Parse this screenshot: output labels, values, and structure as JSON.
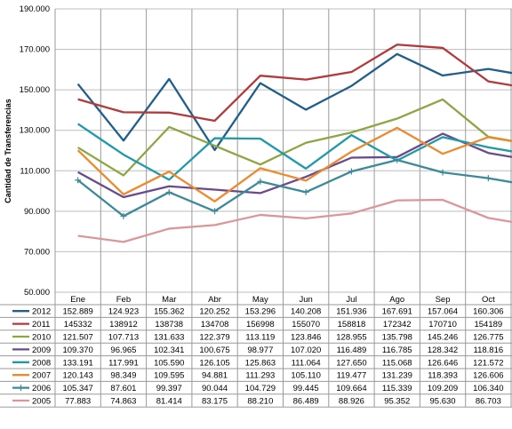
{
  "chart_data": {
    "type": "line",
    "ylabel": "Cantidad de Transferencias",
    "categories": [
      "Ene",
      "Feb",
      "Mar",
      "Abr",
      "May",
      "Jun",
      "Jul",
      "Ago",
      "Sep",
      "Oct"
    ],
    "ylim": [
      50000,
      190000
    ],
    "y_ticks": [
      "50.000",
      "70.000",
      "90.000",
      "110.000",
      "130.000",
      "150.000",
      "170.000",
      "190.000"
    ],
    "grid": true,
    "legend": "data table below plot",
    "series": [
      {
        "name": "2012",
        "color": "#1f5f8b",
        "marker": "",
        "values": [
          152889,
          124923,
          155362,
          120252,
          153296,
          140208,
          151936,
          167691,
          157064,
          160306
        ],
        "labels": [
          "152.889",
          "124.923",
          "155.362",
          "120.252",
          "153.296",
          "140.208",
          "151.936",
          "167.691",
          "157.064",
          "160.306"
        ]
      },
      {
        "name": "2011",
        "color": "#b3393a",
        "marker": "",
        "values": [
          145332,
          138912,
          138738,
          134708,
          156998,
          155070,
          158818,
          172342,
          170710,
          154189
        ],
        "labels": [
          "145332",
          "138912",
          "138738",
          "134708",
          "156998",
          "155070",
          "158818",
          "172342",
          "170710",
          "154189"
        ]
      },
      {
        "name": "2010",
        "color": "#8da641",
        "marker": "",
        "values": [
          121507,
          107713,
          131633,
          122379,
          113119,
          123846,
          128955,
          135798,
          145246,
          126775
        ],
        "labels": [
          "121.507",
          "107.713",
          "131.633",
          "122.379",
          "113.119",
          "123.846",
          "128.955",
          "135.798",
          "145.246",
          "126.775"
        ]
      },
      {
        "name": "2009",
        "color": "#6a4a8c",
        "marker": "",
        "values": [
          109370,
          96965,
          102341,
          100675,
          98977,
          107020,
          116489,
          116785,
          128342,
          118816
        ],
        "labels": [
          "109.370",
          "96.965",
          "102.341",
          "100.675",
          "98.977",
          "107.020",
          "116.489",
          "116.785",
          "128.342",
          "118.816"
        ]
      },
      {
        "name": "2008",
        "color": "#1f9aaa",
        "marker": "",
        "values": [
          133191,
          117991,
          105590,
          126105,
          125863,
          111064,
          127650,
          115068,
          126646,
          121572
        ],
        "labels": [
          "133.191",
          "117.991",
          "105.590",
          "126.105",
          "125.863",
          "111.064",
          "127.650",
          "115.068",
          "126.646",
          "121.572"
        ]
      },
      {
        "name": "2007",
        "color": "#ee8a2e",
        "marker": "",
        "values": [
          120143,
          98349,
          109595,
          94881,
          111293,
          105110,
          119477,
          131239,
          118393,
          126606
        ],
        "labels": [
          "120.143",
          "98.349",
          "109.595",
          "94.881",
          "111.293",
          "105.110",
          "119.477",
          "131.239",
          "118.393",
          "126.606"
        ]
      },
      {
        "name": "2006",
        "color": "#3b8a99",
        "marker": "+",
        "values": [
          105347,
          87601,
          99397,
          90044,
          104729,
          99445,
          109664,
          115339,
          109209,
          106340
        ],
        "labels": [
          "105.347",
          "87.601",
          "99.397",
          "90.044",
          "104.729",
          "99.445",
          "109.664",
          "115.339",
          "109.209",
          "106.340"
        ]
      },
      {
        "name": "2005",
        "color": "#dd9698",
        "marker": "",
        "values": [
          77883,
          74863,
          81414,
          83175,
          88210,
          86489,
          88926,
          95352,
          95630,
          86703
        ],
        "labels": [
          "77.883",
          "74.863",
          "81.414",
          "83.175",
          "88.210",
          "86.489",
          "88.926",
          "95.352",
          "95.630",
          "86.703"
        ]
      }
    ]
  }
}
